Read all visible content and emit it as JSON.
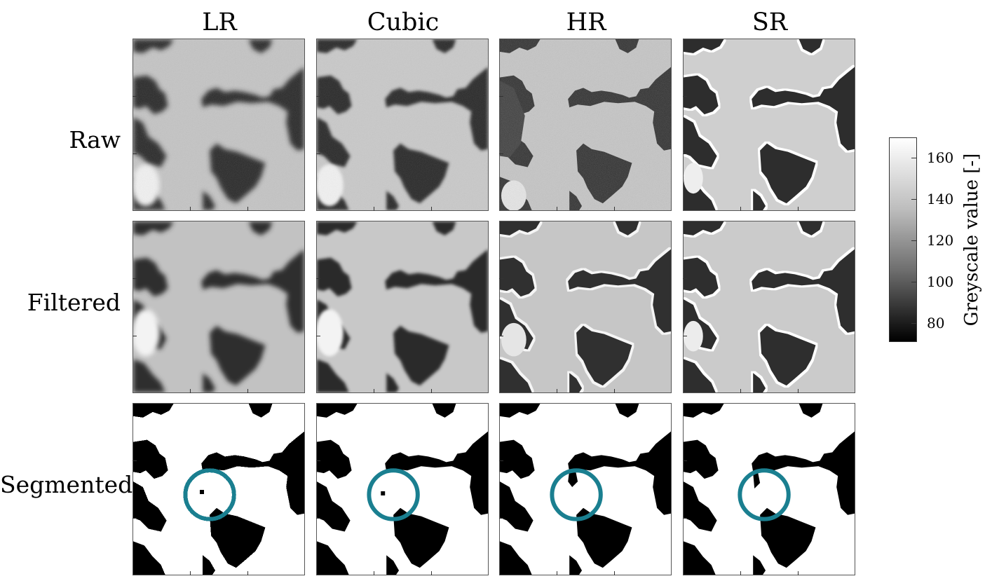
{
  "columns": [
    "LR",
    "Cubic",
    "HR",
    "SR"
  ],
  "rows": [
    "Raw",
    "Filtered",
    "Segmented"
  ],
  "colorbar": {
    "title": "Greyscale value [-]",
    "ticks": [
      "160",
      "140",
      "120",
      "100",
      "80"
    ]
  }
}
